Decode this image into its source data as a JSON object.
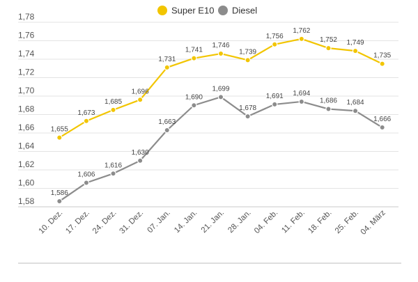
{
  "chart_data": {
    "type": "line",
    "categories": [
      "10. Dez.",
      "17. Dez.",
      "24. Dez.",
      "31. Dez.",
      "07. Jan.",
      "14. Jan.",
      "21. Jan.",
      "28. Jan.",
      "04. Feb.",
      "11. Feb.",
      "18. Feb.",
      "25. Feb.",
      "04. März"
    ],
    "series": [
      {
        "name": "Super E10",
        "color": "#f2c500",
        "values": [
          1.655,
          1.673,
          1.685,
          1.696,
          1.731,
          1.741,
          1.746,
          1.739,
          1.756,
          1.762,
          1.752,
          1.749,
          1.735
        ],
        "labels": [
          "1,655",
          "1,673",
          "1,685",
          "1,696",
          "1,731",
          "1,741",
          "1,746",
          "1,739",
          "1,756",
          "1,762",
          "1,752",
          "1,749",
          "1,735"
        ]
      },
      {
        "name": "Diesel",
        "color": "#8c8c8c",
        "values": [
          1.586,
          1.606,
          1.616,
          1.63,
          1.663,
          1.69,
          1.699,
          1.678,
          1.691,
          1.694,
          1.686,
          1.684,
          1.666
        ],
        "labels": [
          "1,586",
          "1,606",
          "1,616",
          "1,630",
          "1,663",
          "1,690",
          "1,699",
          "1,678",
          "1,691",
          "1,694",
          "1,686",
          "1,684",
          "1,666"
        ]
      }
    ],
    "ylim": [
      1.58,
      1.78
    ],
    "yticks": [
      1.58,
      1.6,
      1.62,
      1.64,
      1.66,
      1.68,
      1.7,
      1.72,
      1.74,
      1.76,
      1.78
    ],
    "ytick_labels": [
      "1,58",
      "1,60",
      "1,62",
      "1,64",
      "1,66",
      "1,68",
      "1,70",
      "1,72",
      "1,74",
      "1,76",
      "1,78"
    ],
    "grid": true,
    "legend": "top-center"
  }
}
